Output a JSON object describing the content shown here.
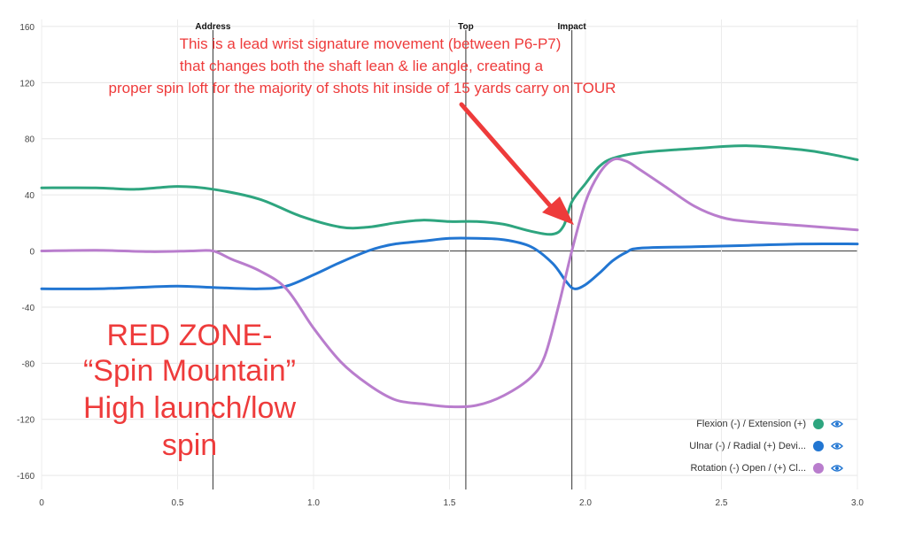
{
  "chart_data": {
    "type": "line",
    "xlim": [
      0,
      3.0
    ],
    "ylim": [
      -170,
      165
    ],
    "x_ticks": [
      "0",
      "0.5",
      "1.0",
      "1.5",
      "2.0",
      "2.5",
      "3.0"
    ],
    "y_ticks": [
      "160",
      "120",
      "80",
      "40",
      "0",
      "-40",
      "-80",
      "-120",
      "-160"
    ],
    "grid": true,
    "events": [
      {
        "label": "Address",
        "x": 0.63
      },
      {
        "label": "Top",
        "x": 1.56
      },
      {
        "label": "Impact",
        "x": 1.95
      }
    ],
    "series": [
      {
        "name": "Flexion (-) / Extension (+)",
        "color": "#2ea57f",
        "points": [
          [
            0,
            45
          ],
          [
            0.2,
            45
          ],
          [
            0.35,
            44
          ],
          [
            0.5,
            46
          ],
          [
            0.63,
            44
          ],
          [
            0.8,
            37
          ],
          [
            0.95,
            25
          ],
          [
            1.1,
            17
          ],
          [
            1.2,
            17
          ],
          [
            1.3,
            20
          ],
          [
            1.4,
            22
          ],
          [
            1.5,
            21
          ],
          [
            1.6,
            21
          ],
          [
            1.7,
            19
          ],
          [
            1.8,
            14
          ],
          [
            1.88,
            12
          ],
          [
            1.92,
            18
          ],
          [
            1.95,
            35
          ],
          [
            2.0,
            48
          ],
          [
            2.05,
            60
          ],
          [
            2.1,
            66
          ],
          [
            2.2,
            70
          ],
          [
            2.4,
            73
          ],
          [
            2.6,
            75
          ],
          [
            2.8,
            72
          ],
          [
            2.9,
            69
          ],
          [
            3.0,
            65
          ]
        ]
      },
      {
        "name": "Ulnar (-) / Radial (+) Devi...",
        "color": "#2276d2",
        "points": [
          [
            0,
            -27
          ],
          [
            0.2,
            -27
          ],
          [
            0.35,
            -26
          ],
          [
            0.5,
            -25
          ],
          [
            0.63,
            -26
          ],
          [
            0.8,
            -27
          ],
          [
            0.9,
            -25
          ],
          [
            1.0,
            -17
          ],
          [
            1.1,
            -8
          ],
          [
            1.2,
            0
          ],
          [
            1.25,
            3
          ],
          [
            1.3,
            5
          ],
          [
            1.4,
            7
          ],
          [
            1.5,
            9
          ],
          [
            1.6,
            9
          ],
          [
            1.7,
            8
          ],
          [
            1.8,
            3
          ],
          [
            1.88,
            -9
          ],
          [
            1.93,
            -22
          ],
          [
            1.96,
            -27
          ],
          [
            2.0,
            -24
          ],
          [
            2.05,
            -16
          ],
          [
            2.1,
            -7
          ],
          [
            2.15,
            -1
          ],
          [
            2.2,
            2
          ],
          [
            2.4,
            3
          ],
          [
            2.6,
            4
          ],
          [
            2.8,
            5
          ],
          [
            3.0,
            5
          ]
        ]
      },
      {
        "name": "Rotation (-) Open / (+) Cl...",
        "color": "#b97dcd",
        "points": [
          [
            0,
            0
          ],
          [
            0.2,
            0.5
          ],
          [
            0.4,
            -0.5
          ],
          [
            0.55,
            0
          ],
          [
            0.63,
            0
          ],
          [
            0.7,
            -6
          ],
          [
            0.8,
            -14
          ],
          [
            0.9,
            -27
          ],
          [
            1.0,
            -55
          ],
          [
            1.1,
            -79
          ],
          [
            1.2,
            -95
          ],
          [
            1.3,
            -106
          ],
          [
            1.4,
            -109
          ],
          [
            1.5,
            -111
          ],
          [
            1.6,
            -110
          ],
          [
            1.7,
            -103
          ],
          [
            1.8,
            -90
          ],
          [
            1.85,
            -75
          ],
          [
            1.9,
            -40
          ],
          [
            1.95,
            0
          ],
          [
            2.0,
            35
          ],
          [
            2.05,
            55
          ],
          [
            2.1,
            65
          ],
          [
            2.15,
            64
          ],
          [
            2.2,
            58
          ],
          [
            2.3,
            45
          ],
          [
            2.4,
            32
          ],
          [
            2.5,
            24
          ],
          [
            2.6,
            21
          ],
          [
            2.8,
            18
          ],
          [
            3.0,
            15
          ]
        ]
      }
    ],
    "legend_position": "bottom-right"
  },
  "annotation": {
    "lines": [
      "This is a lead wrist signature movement (between P6-P7)",
      "that changes both the shaft lean & lie angle, creating a",
      "proper spin loft for the majority of shots hit inside of 15 yards carry on TOUR"
    ],
    "color": "#ee3b3b"
  },
  "red_zone": {
    "lines": [
      "RED ZONE-",
      "“Spin Mountain”",
      "High launch/low",
      "spin"
    ]
  },
  "legend_icon": "eye-icon"
}
